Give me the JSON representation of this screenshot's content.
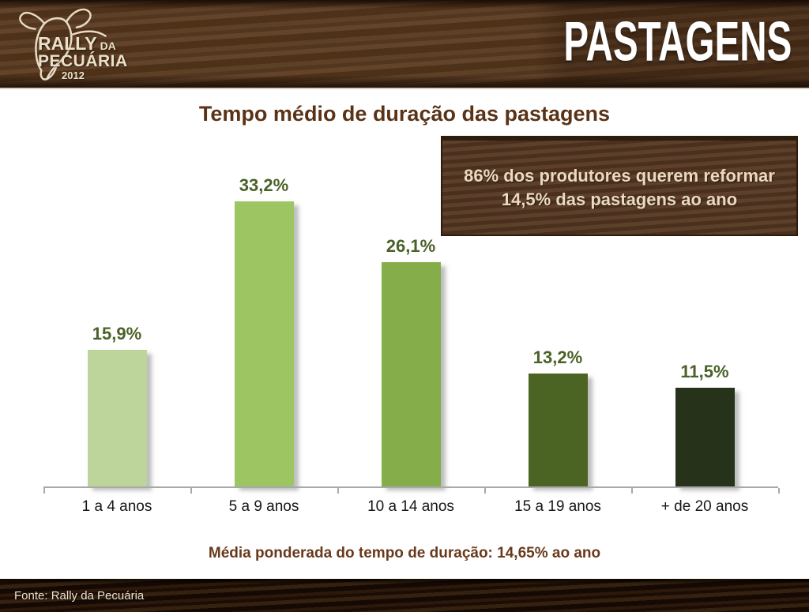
{
  "header": {
    "title": "PASTAGENS",
    "logo": {
      "name1": "RALLY",
      "name2": "DA",
      "name3": "PECUÁRIA",
      "year": "2012"
    }
  },
  "main": {
    "chart_title": "Tempo médio de duração das pastagens",
    "callout_text": "86% dos produtores querem reformar 14,5% das pastagens ao ano",
    "footnote": "Média ponderada do tempo de duração: 14,65% ao ano"
  },
  "chart_data": {
    "type": "bar",
    "title": "Tempo médio de duração das pastagens",
    "categories": [
      "1 a 4 anos",
      "5 a 9 anos",
      "10 a 14 anos",
      "15 a 19 anos",
      "+ de 20 anos"
    ],
    "values": [
      15.9,
      33.2,
      26.1,
      13.2,
      11.5
    ],
    "value_labels": [
      "15,9%",
      "33,2%",
      "26,1%",
      "13,2%",
      "11,5%"
    ],
    "bar_colors": [
      "#bdd59b",
      "#9dc562",
      "#85ad4a",
      "#4c6423",
      "#263219"
    ],
    "unit": "%",
    "ylim": [
      0,
      36
    ],
    "grid": false,
    "legend": false,
    "xlabel": "",
    "ylabel": "",
    "annotation": "86% dos produtores querem reformar 14,5% das pastagens ao ano",
    "value_label_color": "#4a6128"
  },
  "footer": {
    "source": "Fonte: Rally da Pecuária"
  },
  "colors": {
    "header_wood": "#573920",
    "footer_wood": "#241404",
    "title_brown": "#5a3317",
    "callout_bg": "#543621",
    "callout_text": "#ecd9bf",
    "axis_gray": "#a9a9a9",
    "footnote_brown": "#68391c"
  }
}
